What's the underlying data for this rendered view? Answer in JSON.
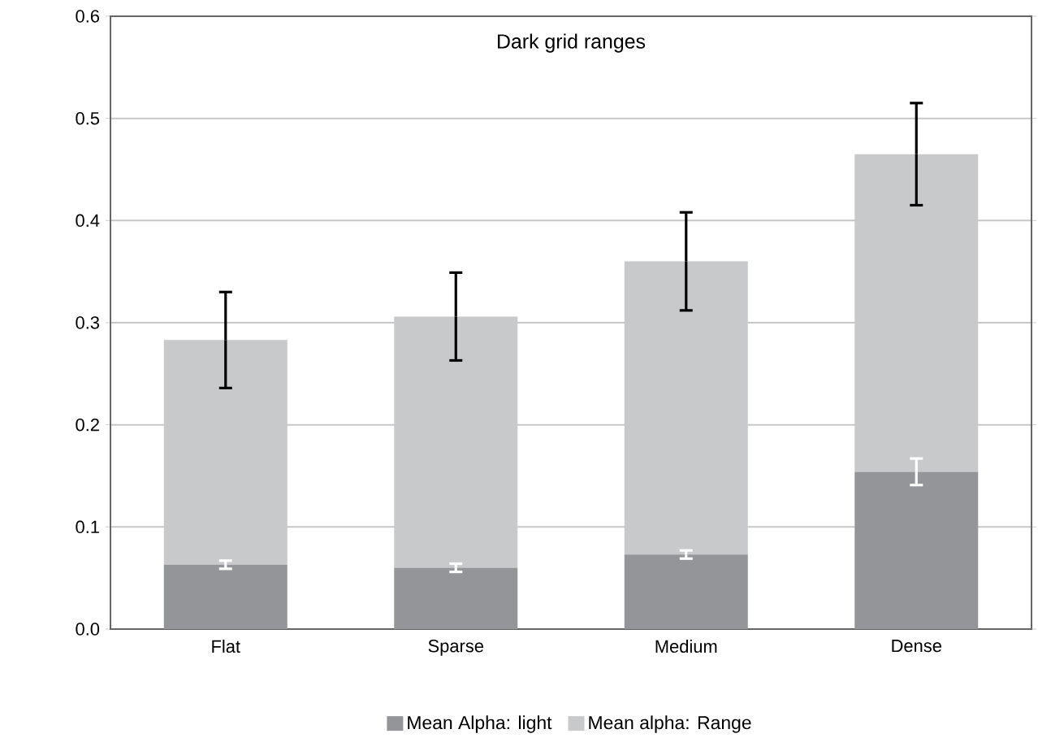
{
  "chart_data": {
    "type": "bar",
    "title": "Dark grid ranges",
    "stacked": true,
    "categories": [
      "Flat",
      "Sparse",
      "Medium",
      "Dense"
    ],
    "series": [
      {
        "name": "Mean Alpha: light",
        "color": "#939598",
        "values": [
          0.063,
          0.06,
          0.073,
          0.154
        ],
        "errors": [
          0.004,
          0.004,
          0.004,
          0.013
        ]
      },
      {
        "name": "Mean alpha: Range",
        "color": "#c8c9cb",
        "values": [
          0.22,
          0.246,
          0.287,
          0.311
        ],
        "errors": [
          0.047,
          0.043,
          0.048,
          0.05
        ]
      }
    ],
    "ylim": [
      0,
      0.6
    ],
    "yticks": [
      {
        "value": 0,
        "label": "0.0"
      },
      0.1,
      0.2,
      0.3,
      0.4,
      0.5,
      0.6
    ],
    "grid": "y",
    "legend": "bottom"
  }
}
